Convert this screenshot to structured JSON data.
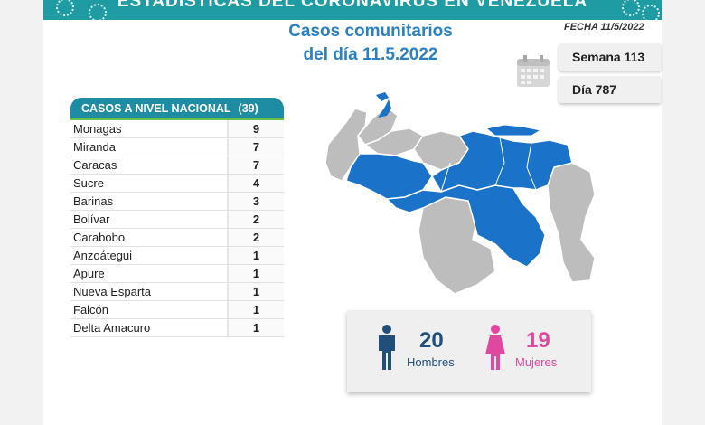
{
  "banner": {
    "title": "ESTADÍSTICAS DEL CORONAVIRUS EN VENEZUELA"
  },
  "date": "FECHA 11/5/2022",
  "headline": {
    "line1": "Casos comunitarios",
    "line2": "del día 11.5.2022"
  },
  "week": "Semana 113",
  "day": "Día 787",
  "table": {
    "title": "CASOS A NIVEL NACIONAL",
    "total": "(39)",
    "rows": [
      {
        "state": "Monagas",
        "cases": "9"
      },
      {
        "state": "Miranda",
        "cases": "7"
      },
      {
        "state": "Caracas",
        "cases": "7"
      },
      {
        "state": "Sucre",
        "cases": "4"
      },
      {
        "state": "Barinas",
        "cases": "3"
      },
      {
        "state": "Bolívar",
        "cases": "2"
      },
      {
        "state": "Carabobo",
        "cases": "2"
      },
      {
        "state": "Anzoátegui",
        "cases": "1"
      },
      {
        "state": "Apure",
        "cases": "1"
      },
      {
        "state": "Nueva Esparta",
        "cases": "1"
      },
      {
        "state": "Falcón",
        "cases": "1"
      },
      {
        "state": "Delta Amacuro",
        "cases": "1"
      }
    ]
  },
  "gender": {
    "men_count": "20",
    "men_label": "Hombres",
    "women_count": "19",
    "women_label": "Mujeres"
  },
  "colors": {
    "affected": "#1a73c9",
    "unaffected": "#bdbdbd",
    "men": "#1f4f7a",
    "women": "#e0479e",
    "header": "#1e8da3"
  },
  "icons": [
    "calendar-icon",
    "man-icon",
    "woman-icon",
    "virus-icon"
  ]
}
